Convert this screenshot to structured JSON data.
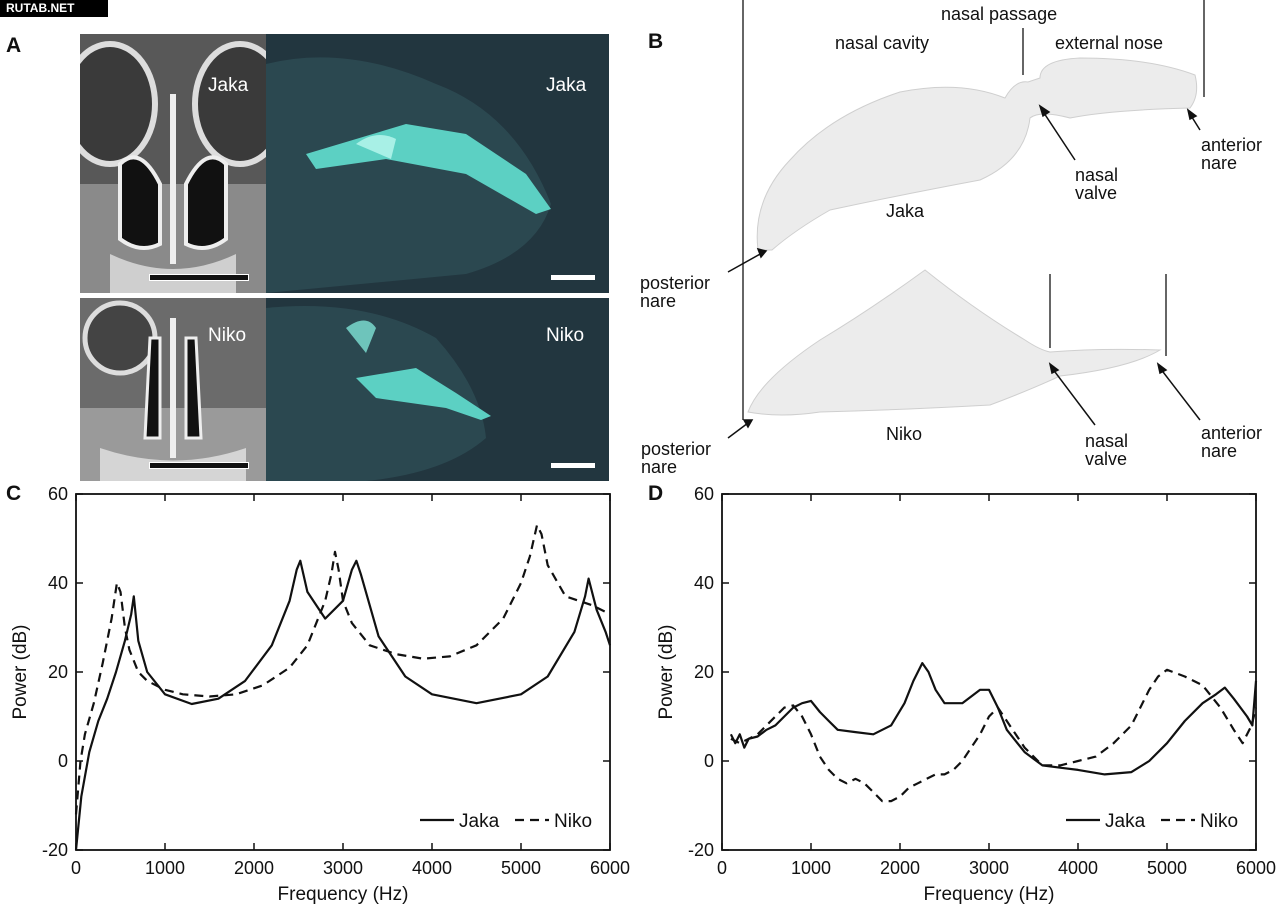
{
  "watermark": "RUTAB.NET",
  "panels": {
    "a": {
      "letter": "A",
      "jaka": "Jaka",
      "niko": "Niko"
    },
    "b": {
      "letter": "B",
      "nasal_passage": "nasal passage",
      "nasal_cavity": "nasal cavity",
      "external_nose": "external nose",
      "jaka": "Jaka",
      "niko": "Niko",
      "anterior_1": "anterior",
      "nare_1": "nare",
      "nasal_1": "nasal",
      "valve_1": "valve",
      "posterior_1": "posterior",
      "nare_2": "nare",
      "posterior_2": "posterior",
      "nare_3": "nare",
      "nasal_2": "nasal",
      "valve_2": "valve",
      "anterior_2": "anterior",
      "nare_4": "nare"
    },
    "c": {
      "letter": "C"
    },
    "d": {
      "letter": "D"
    }
  },
  "chart_data": [
    {
      "type": "line",
      "panel": "C",
      "xlabel": "Frequency (Hz)",
      "ylabel": "Power (dB)",
      "xlim": [
        0,
        6000
      ],
      "ylim": [
        -20,
        60
      ],
      "xticks": [
        0,
        1000,
        2000,
        3000,
        4000,
        5000,
        6000
      ],
      "yticks": [
        -20,
        0,
        20,
        40,
        60
      ],
      "legend_position": "bottom-right",
      "grid": false,
      "series": [
        {
          "name": "Jaka",
          "style": "solid",
          "color": "#111111",
          "x": [
            0,
            60,
            150,
            250,
            350,
            450,
            550,
            620,
            650,
            700,
            800,
            1000,
            1300,
            1600,
            1900,
            2200,
            2400,
            2480,
            2520,
            2600,
            2800,
            3000,
            3100,
            3150,
            3200,
            3400,
            3700,
            4000,
            4500,
            5000,
            5300,
            5600,
            5720,
            5760,
            5850,
            5950,
            6000
          ],
          "y": [
            -20,
            -8,
            2,
            9,
            14,
            20,
            27,
            33,
            37,
            27,
            20,
            15,
            12.8,
            14,
            18,
            26,
            36,
            43,
            45,
            38,
            32,
            36,
            43,
            45,
            42,
            28,
            19,
            15,
            13,
            15,
            19,
            29,
            37,
            41,
            34,
            29,
            26
          ]
        },
        {
          "name": "Niko",
          "style": "dashed",
          "color": "#111111",
          "x": [
            0,
            50,
            100,
            200,
            300,
            400,
            460,
            500,
            550,
            600,
            700,
            800,
            1000,
            1200,
            1500,
            1800,
            2100,
            2400,
            2600,
            2800,
            2870,
            2910,
            2950,
            3000,
            3100,
            3300,
            3600,
            3900,
            4200,
            4500,
            4800,
            5000,
            5100,
            5180,
            5230,
            5300,
            5500,
            5800,
            6000
          ],
          "y": [
            -12,
            0,
            6,
            13,
            22,
            32,
            40,
            38,
            30,
            25,
            20,
            18,
            16,
            15,
            14.5,
            15,
            17,
            21,
            26,
            36,
            42,
            47,
            43,
            36,
            31,
            26,
            24,
            23,
            23.5,
            26,
            32,
            40,
            46,
            53,
            51,
            44,
            37,
            35,
            33
          ]
        }
      ]
    },
    {
      "type": "line",
      "panel": "D",
      "xlabel": "Frequency (Hz)",
      "ylabel": "Power (dB)",
      "xlim": [
        0,
        6000
      ],
      "ylim": [
        -20,
        60
      ],
      "xticks": [
        0,
        1000,
        2000,
        3000,
        4000,
        5000,
        6000
      ],
      "yticks": [
        -20,
        0,
        20,
        40,
        60
      ],
      "legend_position": "bottom-right",
      "grid": false,
      "series": [
        {
          "name": "Jaka",
          "style": "solid",
          "color": "#111111",
          "x": [
            100,
            150,
            200,
            250,
            300,
            400,
            500,
            600,
            700,
            800,
            900,
            1000,
            1100,
            1200,
            1300,
            1500,
            1700,
            1900,
            2050,
            2150,
            2250,
            2320,
            2400,
            2500,
            2700,
            2900,
            3000,
            3100,
            3200,
            3400,
            3600,
            3800,
            4000,
            4300,
            4600,
            4800,
            5000,
            5200,
            5400,
            5550,
            5650,
            5750,
            5900,
            5960,
            6000
          ],
          "y": [
            6,
            4,
            6,
            3,
            5,
            5.5,
            7,
            8,
            10,
            12,
            13,
            13.5,
            11,
            9,
            7,
            6.5,
            6,
            8,
            13,
            18,
            22,
            20,
            16,
            13,
            13,
            16,
            16,
            12,
            7,
            2,
            -1,
            -1.5,
            -2,
            -3,
            -2.5,
            0,
            4,
            9,
            13,
            15,
            16.5,
            14,
            10,
            8,
            18
          ]
        },
        {
          "name": "Niko",
          "style": "dashed",
          "color": "#111111",
          "x": [
            100,
            200,
            300,
            400,
            500,
            600,
            700,
            800,
            900,
            1000,
            1100,
            1200,
            1300,
            1400,
            1500,
            1600,
            1700,
            1800,
            1900,
            2000,
            2100,
            2200,
            2300,
            2400,
            2500,
            2600,
            2700,
            2800,
            2900,
            3000,
            3100,
            3200,
            3400,
            3600,
            3800,
            4000,
            4200,
            4400,
            4600,
            4700,
            4800,
            4900,
            5000,
            5200,
            5400,
            5600,
            5750,
            5850,
            5950,
            6000
          ],
          "y": [
            5,
            4,
            5,
            6,
            8,
            10,
            12,
            12.5,
            10,
            6,
            1,
            -2,
            -4,
            -5,
            -4,
            -5,
            -7,
            -9,
            -9,
            -8,
            -6,
            -5,
            -4,
            -3,
            -3,
            -2,
            0,
            3,
            6,
            10,
            12,
            9,
            3,
            -1,
            -1,
            0,
            1,
            4,
            8,
            12,
            16,
            19,
            20.5,
            19,
            17,
            12,
            7,
            4,
            8,
            12
          ]
        }
      ]
    }
  ]
}
